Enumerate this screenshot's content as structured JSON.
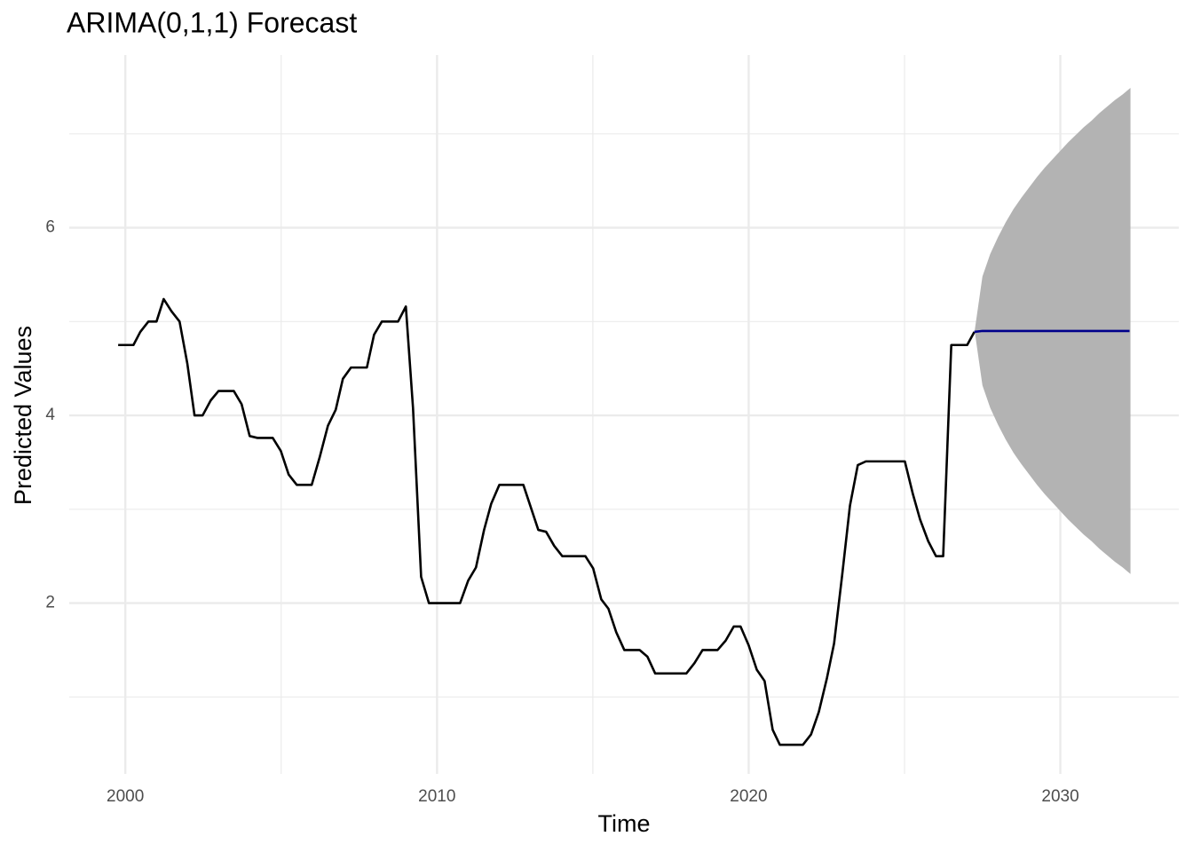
{
  "chart_data": {
    "type": "line",
    "title": "ARIMA(0,1,1) Forecast",
    "x_label": "Time",
    "y_label": "Predicted Values",
    "xlim": [
      1998.2,
      2033.8
    ],
    "ylim": [
      0.18,
      7.84
    ],
    "xticks": [
      2000,
      2010,
      2020,
      2030
    ],
    "yticks": [
      2,
      4,
      6
    ],
    "x_minor_ticks": [
      2005,
      2015,
      2025
    ],
    "y_minor_ticks": [
      1,
      3,
      5,
      7
    ],
    "grid": true,
    "series": [
      {
        "color": "#000000",
        "x": [
          1999.77,
          2000.26,
          2000.48,
          2000.74,
          2001.0,
          2001.23,
          2001.48,
          2001.74,
          2001.99,
          2002.22,
          2002.48,
          2002.74,
          2002.99,
          2003.48,
          2003.73,
          2003.99,
          2004.24,
          2004.73,
          2004.99,
          2005.24,
          2005.5,
          2005.98,
          2006.24,
          2006.5,
          2006.75,
          2006.98,
          2007.24,
          2007.75,
          2007.98,
          2008.23,
          2008.75,
          2009.0,
          2009.23,
          2009.49,
          2009.74,
          2010.74,
          2011.0,
          2011.25,
          2011.51,
          2011.74,
          2012.0,
          2012.77,
          2012.99,
          2013.25,
          2013.5,
          2013.76,
          2014.02,
          2014.76,
          2015.01,
          2015.27,
          2015.5,
          2015.75,
          2016.01,
          2016.5,
          2016.75,
          2017.0,
          2018.0,
          2018.26,
          2018.52,
          2019.0,
          2019.26,
          2019.52,
          2019.74,
          2020.0,
          2020.26,
          2020.51,
          2020.77,
          2021.0,
          2021.74,
          2022.0,
          2022.25,
          2022.51,
          2022.74,
          2023.0,
          2023.25,
          2023.5,
          2023.76,
          2025.01,
          2025.27,
          2025.5,
          2025.76,
          2026.01,
          2026.24,
          2026.5,
          2027.01,
          2027.24
        ],
        "values": [
          4.75,
          4.75,
          4.89,
          5.0,
          5.0,
          5.24,
          5.11,
          5.0,
          4.55,
          4.0,
          4.0,
          4.16,
          4.26,
          4.26,
          4.12,
          3.78,
          3.76,
          3.76,
          3.62,
          3.37,
          3.26,
          3.26,
          3.56,
          3.89,
          4.06,
          4.39,
          4.51,
          4.51,
          4.86,
          5.0,
          5.0,
          5.16,
          4.08,
          2.28,
          2.0,
          2.0,
          2.24,
          2.38,
          2.78,
          3.06,
          3.26,
          3.26,
          3.04,
          2.78,
          2.76,
          2.61,
          2.5,
          2.5,
          2.37,
          2.04,
          1.94,
          1.69,
          1.5,
          1.5,
          1.43,
          1.25,
          1.25,
          1.36,
          1.5,
          1.5,
          1.6,
          1.75,
          1.75,
          1.55,
          1.29,
          1.17,
          0.65,
          0.49,
          0.49,
          0.6,
          0.84,
          1.2,
          1.57,
          2.3,
          3.04,
          3.47,
          3.51,
          3.51,
          3.16,
          2.89,
          2.66,
          2.5,
          2.5,
          4.75,
          4.75,
          4.89
        ]
      },
      {
        "color": "#00008b",
        "x": [
          2027.24,
          2027.5,
          2032.22
        ],
        "values": [
          4.89,
          4.9,
          4.9
        ]
      }
    ],
    "band": {
      "color": "#b3b3b3",
      "x": [
        2027.25,
        2027.5,
        2027.75,
        2028.0,
        2028.25,
        2028.5,
        2028.75,
        2029.0,
        2029.25,
        2029.5,
        2029.75,
        2030.0,
        2030.25,
        2030.5,
        2030.75,
        2031.0,
        2031.25,
        2031.5,
        2031.75,
        2032.0,
        2032.25
      ],
      "lower": [
        4.9,
        4.32,
        4.08,
        3.9,
        3.74,
        3.6,
        3.48,
        3.37,
        3.26,
        3.16,
        3.07,
        2.98,
        2.89,
        2.81,
        2.73,
        2.66,
        2.58,
        2.51,
        2.44,
        2.38,
        2.31
      ],
      "upper": [
        4.9,
        5.48,
        5.72,
        5.9,
        6.06,
        6.2,
        6.32,
        6.43,
        6.54,
        6.64,
        6.73,
        6.82,
        6.91,
        6.99,
        7.07,
        7.14,
        7.22,
        7.29,
        7.36,
        7.42,
        7.49
      ]
    }
  }
}
